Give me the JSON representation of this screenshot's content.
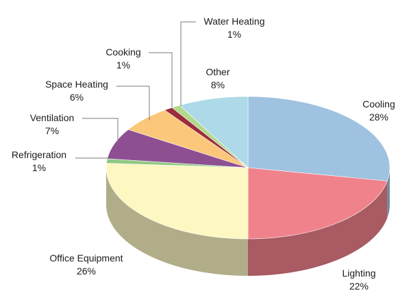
{
  "chart_data": {
    "type": "pie",
    "style": "3d",
    "title": "",
    "slices": [
      {
        "label": "Cooling",
        "value": 28,
        "value_label": "28%",
        "color": "#9fc2e0"
      },
      {
        "label": "Lighting",
        "value": 22,
        "value_label": "22%",
        "color": "#f0828c"
      },
      {
        "label": "Office Equipment",
        "value": 26,
        "value_label": "26%",
        "color": "#fdf7c2"
      },
      {
        "label": "Refrigeration",
        "value": 1,
        "value_label": "1%",
        "color": "#8fc882"
      },
      {
        "label": "Ventilation",
        "value": 7,
        "value_label": "7%",
        "color": "#8e4f92"
      },
      {
        "label": "Space Heating",
        "value": 6,
        "value_label": "6%",
        "color": "#fbc77a"
      },
      {
        "label": "Cooking",
        "value": 1,
        "value_label": "1%",
        "color": "#9b2c3c"
      },
      {
        "label": "Water Heating",
        "value": 1,
        "value_label": "1%",
        "color": "#b2d88a"
      },
      {
        "label": "Other",
        "value": 8,
        "value_label": "8%",
        "color": "#add9e8"
      }
    ]
  }
}
